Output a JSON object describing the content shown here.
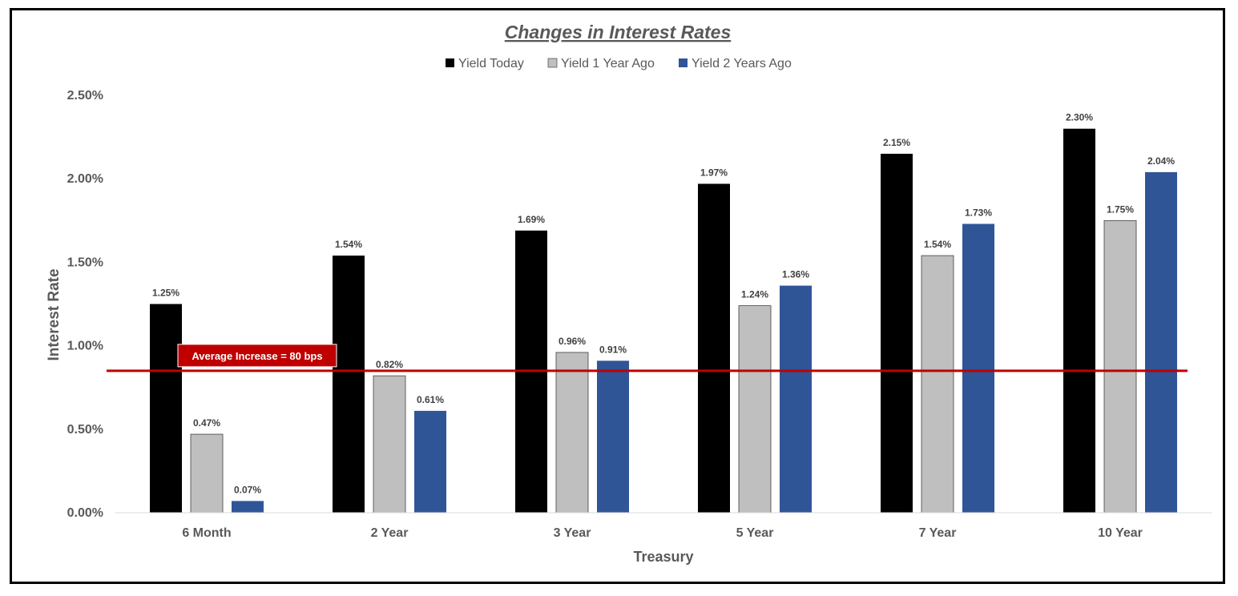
{
  "chart_data": {
    "type": "bar",
    "title": "Changes in Interest Rates",
    "xlabel": "Treasury",
    "ylabel": "Interest Rate",
    "categories": [
      "6 Month",
      "2 Year",
      "3 Year",
      "5 Year",
      "7 Year",
      "10 Year"
    ],
    "series": [
      {
        "name": "Yield Today",
        "color": "#000000",
        "values": [
          1.25,
          1.54,
          1.69,
          1.97,
          2.15,
          2.3
        ],
        "labels": [
          "1.25%",
          "1.54%",
          "1.69%",
          "1.97%",
          "2.15%",
          "2.30%"
        ]
      },
      {
        "name": "Yield 1 Year Ago",
        "color": "#BFBFBF",
        "values": [
          0.47,
          0.82,
          0.96,
          1.24,
          1.54,
          1.75
        ],
        "labels": [
          "0.47%",
          "0.82%",
          "0.96%",
          "1.24%",
          "1.54%",
          "1.75%"
        ]
      },
      {
        "name": "Yield 2 Years Ago",
        "color": "#2F5597",
        "values": [
          0.07,
          0.61,
          0.91,
          1.36,
          1.73,
          2.04
        ],
        "labels": [
          "0.07%",
          "0.61%",
          "0.91%",
          "1.36%",
          "1.73%",
          "2.04%"
        ]
      }
    ],
    "yticks": [
      0,
      0.5,
      1.0,
      1.5,
      2.0,
      2.5
    ],
    "ytick_labels": [
      "0.00%",
      "0.50%",
      "1.00%",
      "1.50%",
      "2.00%",
      "2.50%"
    ],
    "ylim": [
      0,
      2.5
    ],
    "grid": false,
    "legend_position": "top-center",
    "reference_line": {
      "value": 0.85,
      "color": "#C00000",
      "label": "Average Increase = 80 bps"
    }
  }
}
